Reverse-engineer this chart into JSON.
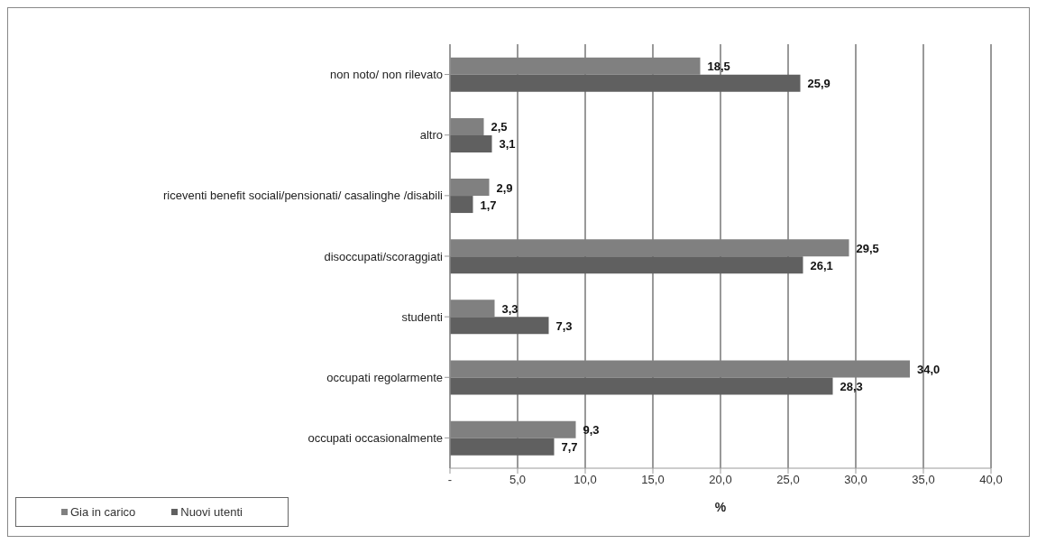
{
  "chart_data": {
    "type": "bar",
    "orientation": "horizontal",
    "xlabel": "%",
    "categories": [
      "non noto/ non rilevato",
      "altro",
      "riceventi benefit sociali/pensionati/ casalinghe /disabili",
      "disoccupati/scoraggiati",
      "studenti",
      "occupati regolarmente",
      "occupati occasionalmente"
    ],
    "series": [
      {
        "name": "Gia in carico",
        "color": "#808080",
        "values": [
          18.5,
          2.5,
          2.9,
          29.5,
          3.3,
          34.0,
          9.3
        ],
        "value_labels": [
          "18,5",
          "2,5",
          "2,9",
          "29,5",
          "3,3",
          "34,0",
          "9,3"
        ]
      },
      {
        "name": "Nuovi utenti",
        "color": "#606060",
        "values": [
          25.9,
          3.1,
          1.7,
          26.1,
          7.3,
          28.3,
          7.7
        ],
        "value_labels": [
          "25,9",
          "3,1",
          "1,7",
          "26,1",
          "7,3",
          "28,3",
          "7,7"
        ]
      }
    ],
    "xlim": [
      0,
      40
    ],
    "xticks": [
      {
        "value": 0,
        "label": "-"
      },
      {
        "value": 5,
        "label": "5,0"
      },
      {
        "value": 10,
        "label": "10,0"
      },
      {
        "value": 15,
        "label": "15,0"
      },
      {
        "value": 20,
        "label": "20,0"
      },
      {
        "value": 25,
        "label": "25,0"
      },
      {
        "value": 30,
        "label": "30,0"
      },
      {
        "value": 35,
        "label": "35,0"
      },
      {
        "value": 40,
        "label": "40,0"
      }
    ],
    "grid": "x",
    "legend": "bottom left"
  }
}
